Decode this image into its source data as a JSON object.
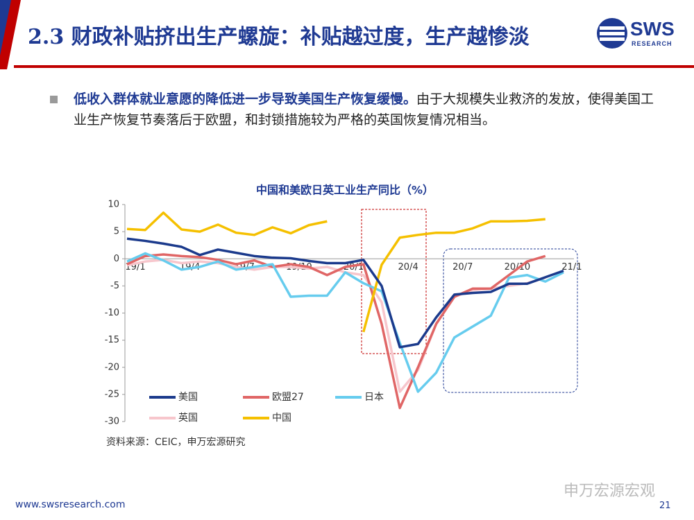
{
  "header": {
    "title": "2.3 财政补贴挤出生产螺旋：补贴越过度，生产越惨淡",
    "logo": "SWS",
    "logo_sub": "RESEARCH"
  },
  "bullet": {
    "bold": "低收入群体就业意愿的降低进一步导致美国生产恢复缓慢。",
    "text": "由于大规模失业救济的发放，使得美国工业生产恢复节奏落后于欧盟，和封锁措施较为严格的英国恢复情况相当。"
  },
  "chart_data": {
    "type": "line",
    "title": "中国和美欧日英工业生产同比（%）",
    "categories": [
      "19/1",
      null,
      null,
      "19/4",
      null,
      null,
      "19/7",
      null,
      null,
      "19/10",
      null,
      null,
      "20/1",
      null,
      null,
      "20/4",
      null,
      null,
      "20/7",
      null,
      null,
      "20/10",
      null,
      null,
      "21/1"
    ],
    "series": [
      {
        "name": "美国",
        "color": "#1b3a8c",
        "values": [
          3.7,
          3.3,
          2.8,
          2.2,
          0.7,
          1.7,
          1.1,
          0.5,
          0.2,
          0.1,
          -0.4,
          -0.8,
          -0.8,
          -0.2,
          -5.0,
          -16.3,
          -15.7,
          -10.8,
          -6.6,
          -6.3,
          -6.1,
          -4.6,
          -4.6,
          -3.4,
          -2.2
        ]
      },
      {
        "name": "欧盟27",
        "color": "#e06666",
        "values": [
          -1.0,
          0.5,
          0.8,
          0.5,
          0.3,
          -0.2,
          -1.0,
          -0.3,
          -1.5,
          -1.0,
          -1.5,
          -3.0,
          -1.5,
          -1.0,
          -12.0,
          -27.5,
          -20.0,
          -12.0,
          -7.0,
          -5.5,
          -5.5,
          -3.0,
          -0.5,
          0.5,
          null
        ]
      },
      {
        "name": "日本",
        "color": "#66ccee",
        "values": [
          -0.5,
          1.0,
          -0.3,
          -2.0,
          -1.5,
          -0.5,
          -2.0,
          -1.5,
          -1.0,
          -7.0,
          -6.8,
          -6.8,
          -2.5,
          -4.5,
          -6.0,
          -15.5,
          -24.5,
          -21.0,
          -14.5,
          -12.5,
          -10.5,
          -3.5,
          -3.0,
          -4.2,
          -2.5
        ]
      },
      {
        "name": "英国",
        "color": "#f7c6cc",
        "values": [
          -1.2,
          -0.5,
          -0.2,
          -0.8,
          -0.5,
          -0.8,
          -1.5,
          -2.0,
          -1.5,
          -1.5,
          -1.8,
          -1.5,
          -2.5,
          -3.0,
          -8.0,
          -24.5,
          -20.5,
          -12.0,
          -7.0,
          -5.8,
          -5.5,
          -5.0,
          -4.5,
          -3.5,
          null
        ]
      },
      {
        "name": "中国",
        "color": "#f5c000",
        "values": [
          5.5,
          5.3,
          8.5,
          5.4,
          5.0,
          6.3,
          4.8,
          4.4,
          5.8,
          4.7,
          6.2,
          6.9,
          null,
          -13.5,
          -1.1,
          3.9,
          4.4,
          4.8,
          4.8,
          5.6,
          6.9,
          6.9,
          7.0,
          7.3,
          null
        ]
      }
    ],
    "ylim": [
      -30,
      10
    ],
    "yticks": [
      10,
      5,
      0,
      -5,
      -10,
      -15,
      -20,
      -25,
      -30
    ],
    "grid": false,
    "source": "资料来源：CEIC，申万宏源研究"
  },
  "footer": {
    "url": "www.swsresearch.com",
    "page": "21",
    "watermark": "申万宏源宏观"
  }
}
